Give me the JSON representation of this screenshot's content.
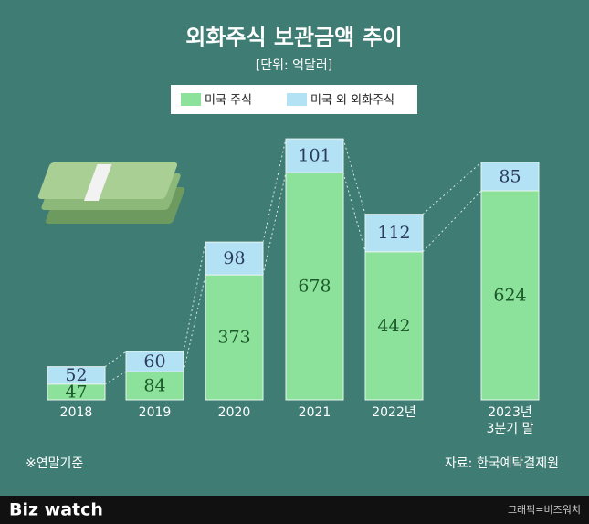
{
  "title": "외화주식 보관금액 추이",
  "subtitle": "[단위: 억달러]",
  "chart_data": {
    "type": "stacked-bar",
    "categories": [
      "2018",
      "2019",
      "2020",
      "2021",
      "2022년",
      "2023년\n3분기 말"
    ],
    "series": [
      {
        "name": "미국 주식",
        "color": "#8de29b",
        "label_color": "#1d5a2b",
        "values": [
          47,
          84,
          373,
          678,
          442,
          624
        ]
      },
      {
        "name": "미국 외 외화주식",
        "color": "#b2e2f4",
        "label_color": "#2c3b5c",
        "values": [
          52,
          60,
          98,
          101,
          112,
          85
        ]
      }
    ]
  },
  "note": "※연말기준",
  "source": "자료: 한국예탁결제원",
  "footer": {
    "logo": "Biz watch",
    "credit": "그래픽=비즈워치"
  }
}
